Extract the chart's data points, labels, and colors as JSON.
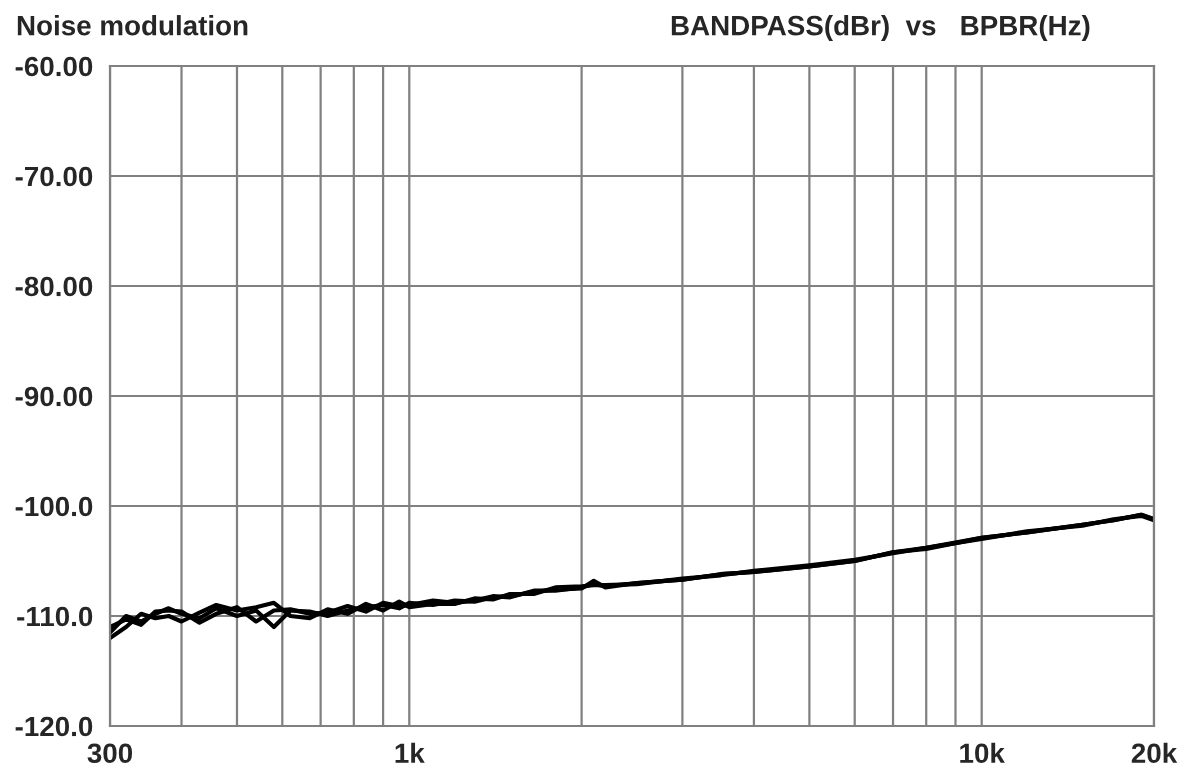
{
  "chart_data": {
    "type": "line",
    "title": "Noise modulation",
    "subtitle": "BANDPASS(dBr)  vs   BPBR(Hz)",
    "x": [
      300,
      320,
      340,
      360,
      380,
      400,
      430,
      460,
      500,
      540,
      580,
      620,
      670,
      720,
      780,
      840,
      900,
      960,
      1000,
      1100,
      1200,
      1300,
      1400,
      1500,
      1650,
      1800,
      2000,
      2100,
      2200,
      2500,
      3000,
      3500,
      4000,
      5000,
      6000,
      7000,
      8000,
      10000,
      12000,
      15000,
      17000,
      19000,
      20000
    ],
    "series": [
      {
        "color": "#000000",
        "values": [
          -111.5,
          -110,
          -110.5,
          -109.8,
          -109.3,
          -109.8,
          -110.2,
          -109.3,
          -110,
          -109.5,
          -111,
          -109.5,
          -109.6,
          -110,
          -109.5,
          -109.2,
          -109,
          -109.3,
          -108.8,
          -109,
          -108.6,
          -108.7,
          -108.3,
          -108.2,
          -107.8,
          -107.6,
          -107.5,
          -106.8,
          -107.4,
          -107,
          -106.7,
          -106.2,
          -106,
          -105.5,
          -105,
          -104.2,
          -103.9,
          -102.9,
          -102.4,
          -101.7,
          -101.3,
          -100.8,
          -101.2
        ]
      },
      {
        "color": "#000000",
        "values": [
          -112,
          -111,
          -109.8,
          -110.2,
          -110,
          -110.5,
          -109.7,
          -109,
          -109.5,
          -109.2,
          -108.8,
          -110,
          -110.2,
          -109.4,
          -109.8,
          -108.9,
          -109.5,
          -108.7,
          -109.2,
          -108.9,
          -108.9,
          -108.4,
          -108.5,
          -108,
          -108,
          -107.4,
          -107.3,
          -107.2,
          -107.2,
          -107.1,
          -106.6,
          -106.3,
          -105.9,
          -105.4,
          -104.9,
          -104.3,
          -103.8,
          -103,
          -102.3,
          -101.8,
          -101.2,
          -100.9,
          -101.3
        ]
      },
      {
        "color": "#000000",
        "values": [
          -111,
          -110.3,
          -110.8,
          -109.6,
          -109.5,
          -109.6,
          -110.6,
          -109.8,
          -109.2,
          -110.5,
          -109.5,
          -109.4,
          -109.8,
          -109.7,
          -109.1,
          -109.6,
          -108.8,
          -109.1,
          -109,
          -108.6,
          -108.8,
          -108.6,
          -108.2,
          -108.3,
          -107.7,
          -107.7,
          -107.4,
          -107.1,
          -107.3,
          -107,
          -106.7,
          -106.2,
          -106,
          -105.5,
          -105,
          -104.2,
          -103.8,
          -102.9,
          -102.4,
          -101.7,
          -101.3,
          -100.8,
          -101.2
        ]
      }
    ],
    "log": "x",
    "xlim": [
      300,
      20000
    ],
    "xticks": [
      300,
      {
        "value": 400,
        "label": null
      },
      {
        "value": 500,
        "label": null
      },
      {
        "value": 600,
        "label": null
      },
      {
        "value": 700,
        "label": null
      },
      {
        "value": 800,
        "label": null
      },
      {
        "value": 900,
        "label": null
      },
      {
        "value": 1000,
        "label": "1k"
      },
      {
        "value": 2000,
        "label": null
      },
      {
        "value": 3000,
        "label": null
      },
      {
        "value": 4000,
        "label": null
      },
      {
        "value": 5000,
        "label": null
      },
      {
        "value": 6000,
        "label": null
      },
      {
        "value": 7000,
        "label": null
      },
      {
        "value": 8000,
        "label": null
      },
      {
        "value": 9000,
        "label": null
      },
      {
        "value": 10000,
        "label": "10k"
      },
      {
        "value": 20000,
        "label": "20k"
      }
    ],
    "ylim": [
      -120,
      -60
    ],
    "yticks": [
      {
        "value": -120,
        "label": "-120.0"
      },
      {
        "value": -110,
        "label": "-110.0"
      },
      {
        "value": -100,
        "label": "-100.0"
      },
      {
        "value": -90,
        "label": "-90.00"
      },
      {
        "value": -80,
        "label": "-80.00"
      },
      {
        "value": -70,
        "label": "-70.00"
      },
      {
        "value": -60,
        "label": "-60.00"
      }
    ],
    "grid": true,
    "marker": "none",
    "line_style": "solid"
  }
}
